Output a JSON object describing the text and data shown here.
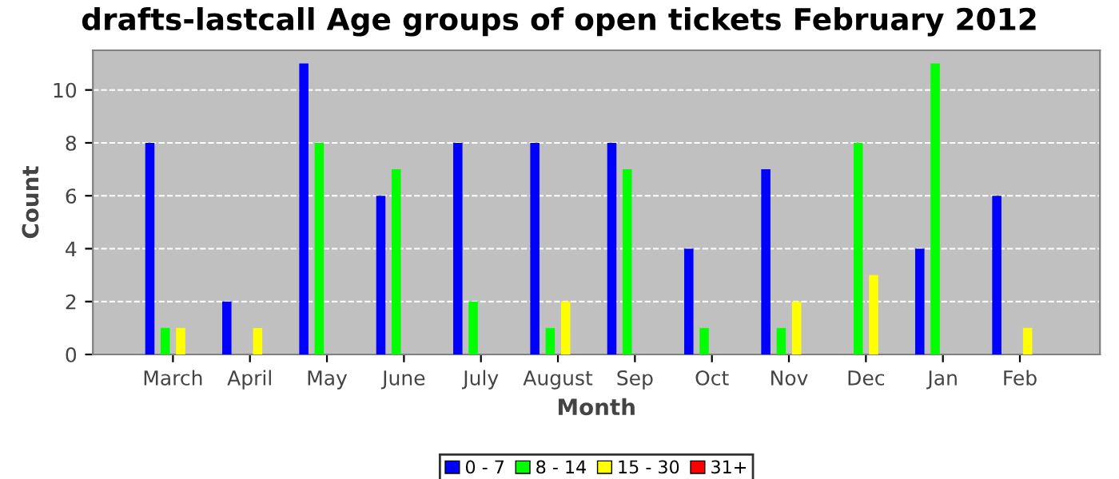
{
  "chart_data": {
    "type": "bar",
    "title": "drafts-lastcall Age groups of open tickets February 2012",
    "xlabel": "Month",
    "ylabel": "Count",
    "categories": [
      "March",
      "April",
      "May",
      "June",
      "July",
      "August",
      "Sep",
      "Oct",
      "Nov",
      "Dec",
      "Jan",
      "Feb"
    ],
    "series": [
      {
        "name": "0 - 7",
        "color": "#0000ff",
        "values": [
          8,
          2,
          11,
          6,
          8,
          8,
          8,
          4,
          7,
          0,
          4,
          6
        ]
      },
      {
        "name": "8 - 14",
        "color": "#00ff00",
        "values": [
          1,
          0,
          8,
          7,
          2,
          1,
          7,
          1,
          1,
          8,
          11,
          0
        ]
      },
      {
        "name": "15 - 30",
        "color": "#ffff00",
        "values": [
          1,
          1,
          0,
          0,
          0,
          2,
          0,
          0,
          2,
          3,
          0,
          1
        ]
      },
      {
        "name": "31+",
        "color": "#ff0000",
        "values": [
          0,
          0,
          0,
          0,
          0,
          0,
          0,
          0,
          0,
          0,
          0,
          0
        ]
      }
    ],
    "ylim": [
      0,
      11.5
    ],
    "yticks": [
      0,
      2,
      4,
      6,
      8,
      10
    ],
    "grid": "y",
    "legend": "bottom"
  }
}
